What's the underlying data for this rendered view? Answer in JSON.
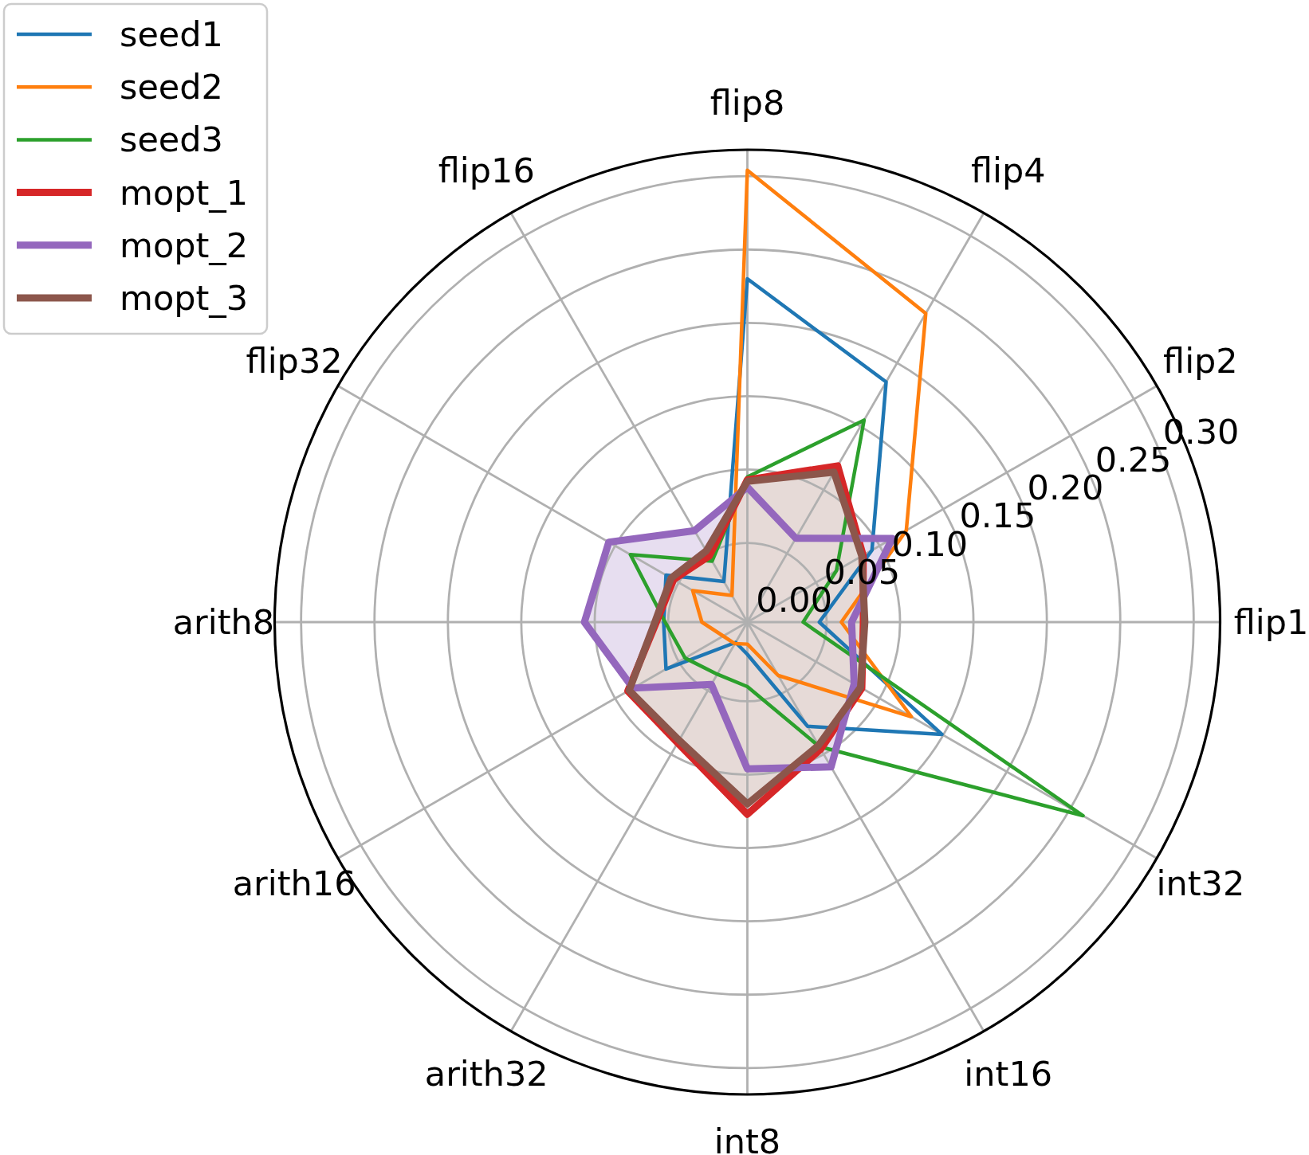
{
  "chart_data": {
    "type": "radar",
    "categories": [
      "flip8",
      "flip4",
      "flip2",
      "flip1",
      "int32",
      "int16",
      "int8",
      "arith32",
      "arith16",
      "arith8",
      "flip32",
      "flip16"
    ],
    "series": [
      {
        "name": "seed1",
        "color": "#1f77b4",
        "values": [
          0.23,
          0.185,
          0.094,
          0.045,
          0.149,
          0.078,
          0.018,
          0.012,
          0.06,
          0.053,
          0.06,
          0.028
        ]
      },
      {
        "name": "seed2",
        "color": "#ff7f0e",
        "values": [
          0.304,
          0.239,
          0.121,
          0.06,
          0.125,
          0.038,
          0.011,
          0.013,
          0.015,
          0.027,
          0.039,
          0.017
        ]
      },
      {
        "name": "seed3",
        "color": "#2ca02c",
        "values": [
          0.095,
          0.155,
          0.066,
          0.034,
          0.26,
          0.094,
          0.04,
          0.037,
          0.045,
          0.052,
          0.088,
          0.044
        ]
      },
      {
        "name": "mopt_1",
        "color": "#d62728",
        "values": [
          0.093,
          0.119,
          0.087,
          0.075,
          0.086,
          0.096,
          0.127,
          0.091,
          0.09,
          0.058,
          0.054,
          0.048
        ]
      },
      {
        "name": "mopt_2",
        "type": "area",
        "color": "#9467bd",
        "values": [
          0.088,
          0.062,
          0.11,
          0.067,
          0.08,
          0.11,
          0.096,
          0.045,
          0.086,
          0.107,
          0.105,
          0.068
        ]
      },
      {
        "name": "mopt_3",
        "type": "area",
        "color": "#8c564b",
        "values": [
          0.092,
          0.114,
          0.086,
          0.076,
          0.085,
          0.093,
          0.12,
          0.089,
          0.089,
          0.059,
          0.056,
          0.052
        ]
      }
    ],
    "ylim": [
      -0.004,
      0.318
    ],
    "yticks": [
      {
        "value": 0,
        "label": "0.00"
      },
      {
        "value": 0.05,
        "label": "0.05"
      },
      {
        "value": 0.1,
        "label": "0.10"
      },
      {
        "value": 0.15,
        "label": "0.15"
      },
      {
        "value": 0.2,
        "label": "0.20"
      },
      {
        "value": 0.25,
        "label": "0.25"
      },
      {
        "value": 0.3,
        "label": "0.30"
      }
    ],
    "grid": true,
    "legend": "top left"
  }
}
